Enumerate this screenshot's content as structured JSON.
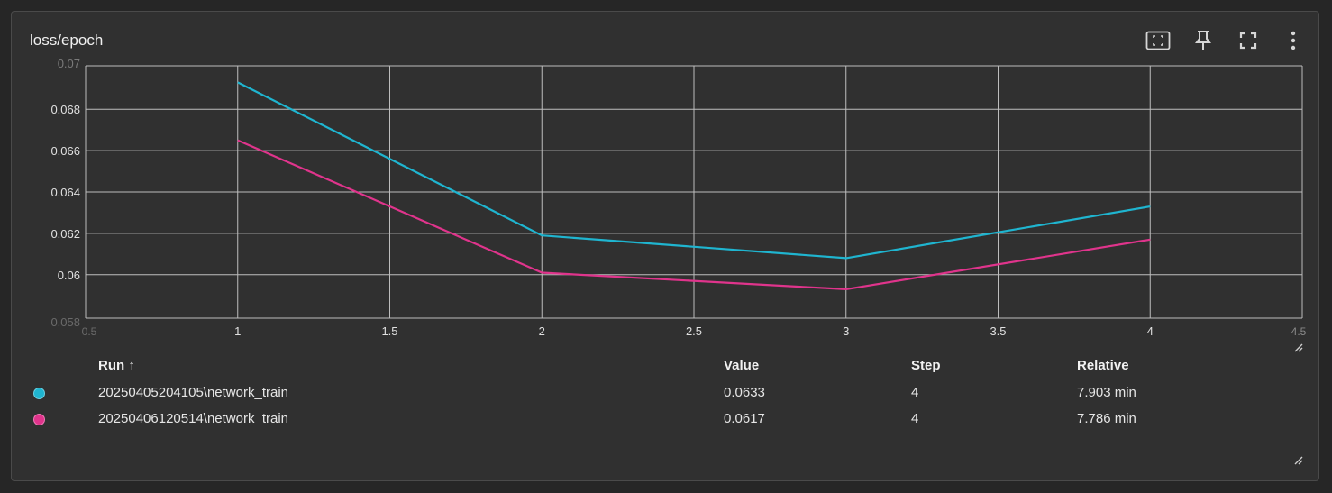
{
  "card": {
    "title": "loss/epoch"
  },
  "toolbar": {
    "buttons": [
      {
        "icon": "fit-to-data-icon"
      },
      {
        "icon": "pin-icon"
      },
      {
        "icon": "fullscreen-icon"
      },
      {
        "icon": "more-vert-icon"
      }
    ]
  },
  "colors": {
    "background": "#303030",
    "grid": "#bdbdbd",
    "series1": "#1fb5d0",
    "series2": "#e0348c",
    "tick_text": "#e0e0e0"
  },
  "chart_data": {
    "type": "line",
    "title": "",
    "xlabel": "",
    "ylabel": "",
    "xlim": [
      0.5,
      4.5
    ],
    "ylim": [
      0.0579,
      0.0701
    ],
    "x_ticks": [
      "1",
      "1.5",
      "2",
      "2.5",
      "3",
      "3.5",
      "4"
    ],
    "y_ticks": [
      "0.068",
      "0.066",
      "0.064",
      "0.062",
      "0.06"
    ],
    "clipped_tick_labels": {
      "top": "0.07",
      "bottom": "0.058",
      "left": "0.5",
      "right": "4.5"
    },
    "grid": true,
    "series": [
      {
        "name": "20250405204105\\network_train",
        "x": [
          1,
          2,
          3,
          4
        ],
        "y": [
          0.0693,
          0.0619,
          0.0608,
          0.0633
        ]
      },
      {
        "name": "20250406120514\\network_train",
        "x": [
          1,
          2,
          3,
          4
        ],
        "y": [
          0.0665,
          0.0601,
          0.0593,
          0.0617
        ]
      }
    ]
  },
  "legend": {
    "headers": {
      "run": "Run ↑",
      "value": "Value",
      "step": "Step",
      "relative": "Relative"
    },
    "rows": [
      {
        "run": "20250405204105\\network_train",
        "value": "0.0633",
        "step": "4",
        "relative": "7.903 min"
      },
      {
        "run": "20250406120514\\network_train",
        "value": "0.0617",
        "step": "4",
        "relative": "7.786 min"
      }
    ]
  }
}
